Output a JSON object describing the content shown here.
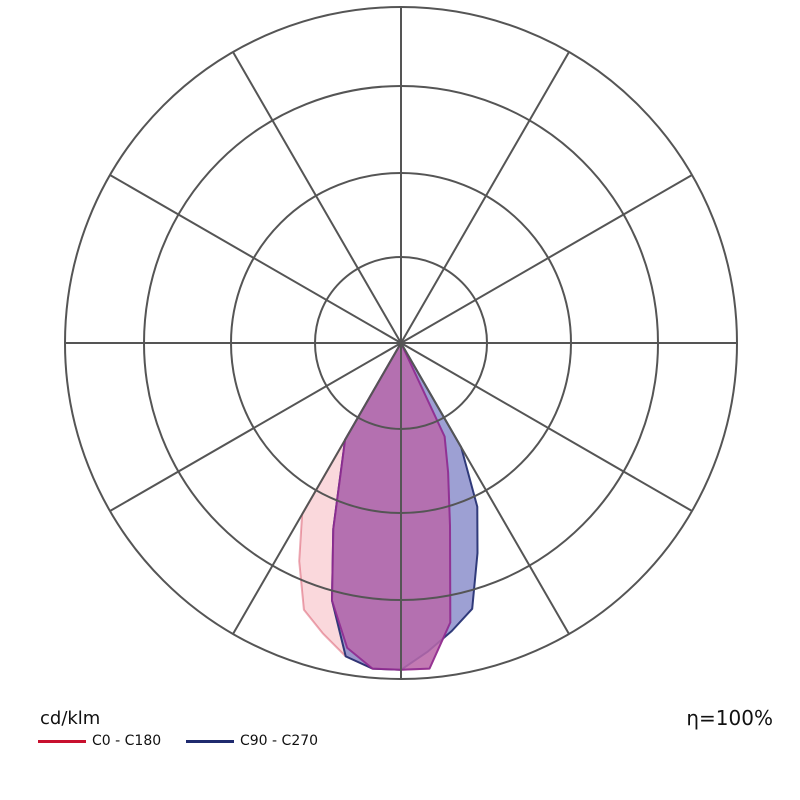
{
  "chart_data": {
    "type": "polar",
    "unit": "cd/klm",
    "efficiency": "η=100%",
    "angle_step_deg": 30,
    "rings": 4,
    "series": [
      {
        "name": "C0 - C180",
        "line_color": "#c8102e",
        "fill": "#f5b8bf",
        "points": [
          {
            "angle": -30,
            "r": 2.3
          },
          {
            "angle": -25,
            "r": 2.8
          },
          {
            "angle": -20,
            "r": 3.3
          },
          {
            "angle": -15,
            "r": 3.5
          },
          {
            "angle": -10,
            "r": 3.7
          },
          {
            "angle": -5,
            "r": 3.8
          },
          {
            "angle": 0,
            "r": 3.8
          },
          {
            "angle": 5,
            "r": 3.8
          },
          {
            "angle": 10,
            "r": 3.3
          },
          {
            "angle": 15,
            "r": 2.2
          },
          {
            "angle": 20,
            "r": 1.6
          },
          {
            "angle": 25,
            "r": 1.2
          }
        ]
      },
      {
        "name": "C90 - C270",
        "line_color": "#1f2a6e",
        "fill": "#7c80c4",
        "points": [
          {
            "angle": -30,
            "r": 1.3
          },
          {
            "angle": -20,
            "r": 2.3
          },
          {
            "angle": -15,
            "r": 3.1
          },
          {
            "angle": -10,
            "r": 3.7
          },
          {
            "angle": -5,
            "r": 3.8
          },
          {
            "angle": 0,
            "r": 3.8
          },
          {
            "angle": 5,
            "r": 3.6
          },
          {
            "angle": 10,
            "r": 3.4
          },
          {
            "angle": 15,
            "r": 3.2
          },
          {
            "angle": 20,
            "r": 2.6
          },
          {
            "angle": 25,
            "r": 2.1
          },
          {
            "angle": 30,
            "r": 1.4
          }
        ]
      },
      {
        "name": "overlap",
        "line_color": "#8e2a90",
        "fill": "#b86aac",
        "points": [
          {
            "angle": -30,
            "r": 1.3
          },
          {
            "angle": -20,
            "r": 2.3
          },
          {
            "angle": -15,
            "r": 3.1
          },
          {
            "angle": -10,
            "r": 3.6
          },
          {
            "angle": -5,
            "r": 3.8
          },
          {
            "angle": 0,
            "r": 3.8
          },
          {
            "angle": 5,
            "r": 3.8
          },
          {
            "angle": 10,
            "r": 3.3
          },
          {
            "angle": 15,
            "r": 2.2
          },
          {
            "angle": 20,
            "r": 1.6
          },
          {
            "angle": 25,
            "r": 1.2
          }
        ]
      }
    ]
  },
  "legend": {
    "items": [
      {
        "label": "C0 - C180",
        "color": "#c8102e"
      },
      {
        "label": "C90 - C270",
        "color": "#1f2a6e"
      }
    ]
  }
}
